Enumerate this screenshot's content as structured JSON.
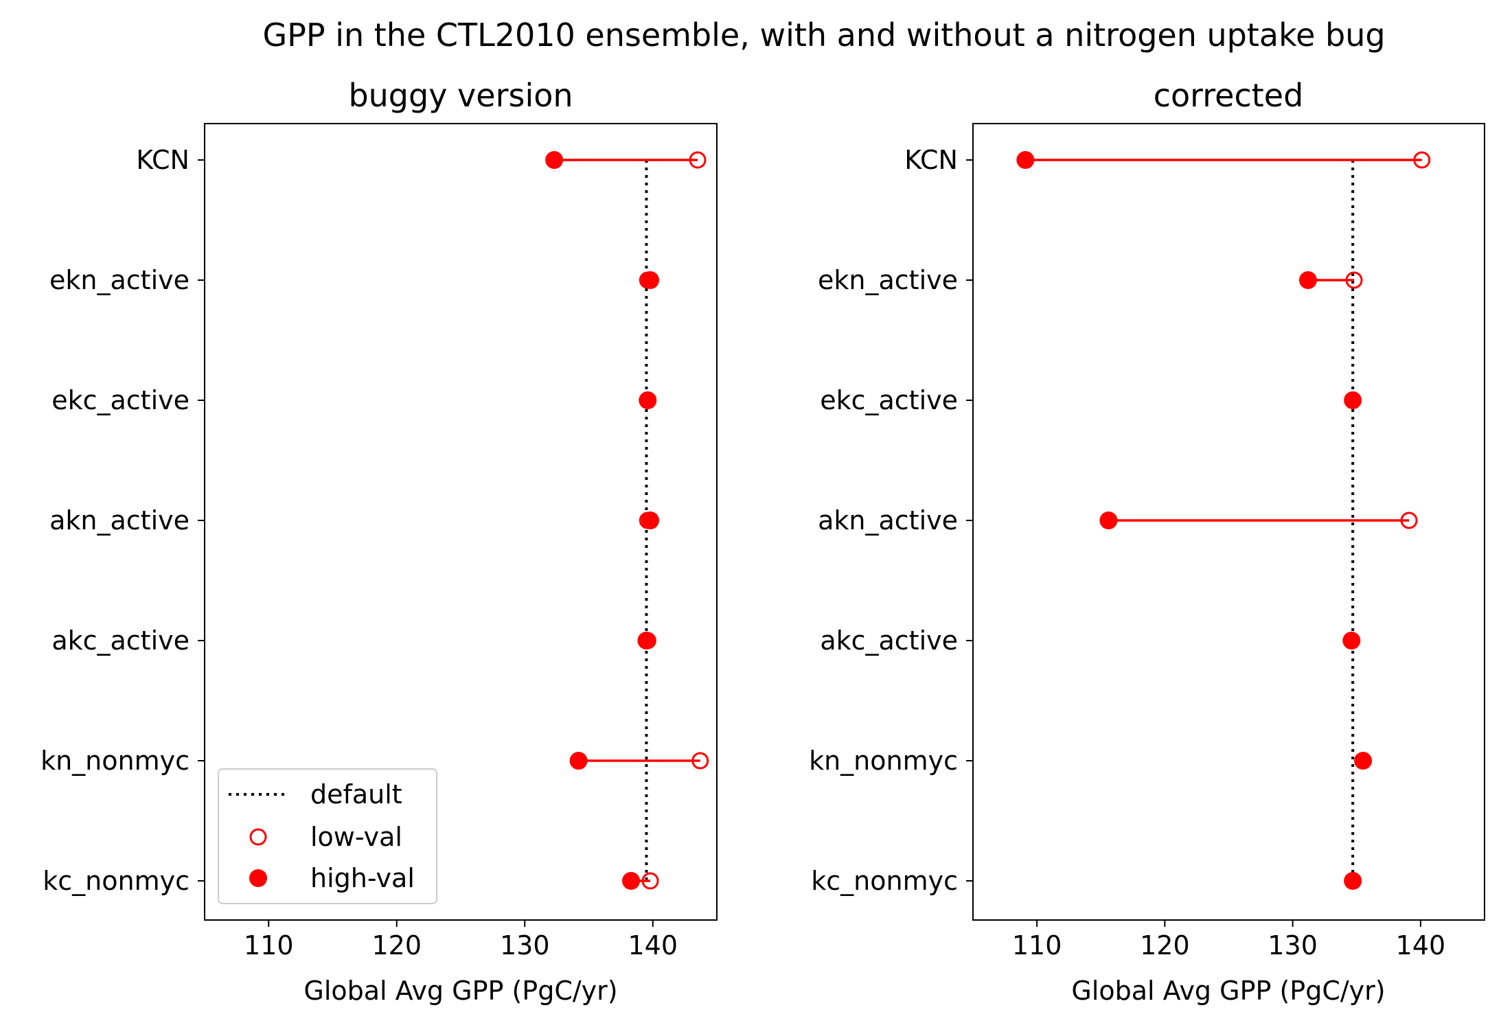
{
  "figure": {
    "suptitle": "GPP in the CTL2010 ensemble, with and without a nitrogen uptake bug"
  },
  "legend": {
    "default_label": "default",
    "low_label": "low-val",
    "high_label": "high-val"
  },
  "colors": {
    "markers": "#ff0000",
    "default_line": "#000000"
  },
  "chart_data": [
    {
      "type": "dumbbell",
      "title": "buggy version",
      "xlabel": "Global Avg GPP (PgC/yr)",
      "ylabel": "",
      "xlim": [
        105,
        145
      ],
      "xticks": [
        110,
        120,
        130,
        140
      ],
      "legend_position": "lower-left",
      "default_value": 139.5,
      "categories": [
        "KCN",
        "ekn_active",
        "ekc_active",
        "akn_active",
        "akc_active",
        "kn_nonmyc",
        "kc_nonmyc"
      ],
      "series": [
        {
          "name": "low-val",
          "marker": "open-circle",
          "values": [
            143.5,
            139.6,
            139.6,
            139.6,
            139.6,
            143.7,
            139.8
          ]
        },
        {
          "name": "high-val",
          "marker": "filled-circle",
          "values": [
            132.3,
            139.8,
            139.6,
            139.8,
            139.5,
            134.2,
            138.3
          ]
        }
      ]
    },
    {
      "type": "dumbbell",
      "title": "corrected",
      "xlabel": "Global Avg GPP (PgC/yr)",
      "ylabel": "",
      "xlim": [
        105,
        145
      ],
      "xticks": [
        110,
        120,
        130,
        140
      ],
      "default_value": 134.7,
      "categories": [
        "KCN",
        "ekn_active",
        "ekc_active",
        "akn_active",
        "akc_active",
        "kn_nonmyc",
        "kc_nonmyc"
      ],
      "series": [
        {
          "name": "low-val",
          "marker": "open-circle",
          "values": [
            140.1,
            134.8,
            134.7,
            139.1,
            134.6,
            135.5,
            134.7
          ]
        },
        {
          "name": "high-val",
          "marker": "filled-circle",
          "values": [
            109.1,
            131.2,
            134.7,
            115.6,
            134.6,
            135.5,
            134.7
          ]
        }
      ]
    }
  ]
}
